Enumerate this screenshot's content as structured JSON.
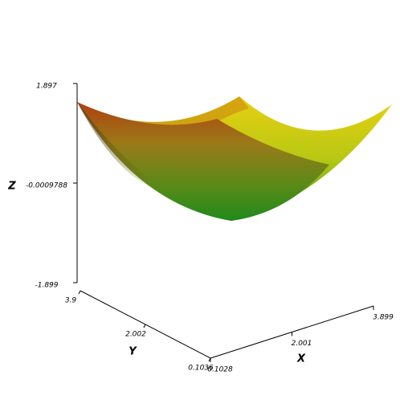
{
  "chart_data": {
    "type": "surface3d",
    "x_label": "X",
    "y_label": "Y",
    "z_label": "Z",
    "xlim": [
      0.1028,
      3.899
    ],
    "xticks": [
      0.1028,
      2.001,
      3.899
    ],
    "ylim": [
      3.9,
      0.1036
    ],
    "yticks": [
      3.9,
      2.002,
      0.1036
    ],
    "zlim": [
      -1.899,
      1.897
    ],
    "zticks": [
      1.897,
      -0.0009788,
      -1.899
    ]
  }
}
